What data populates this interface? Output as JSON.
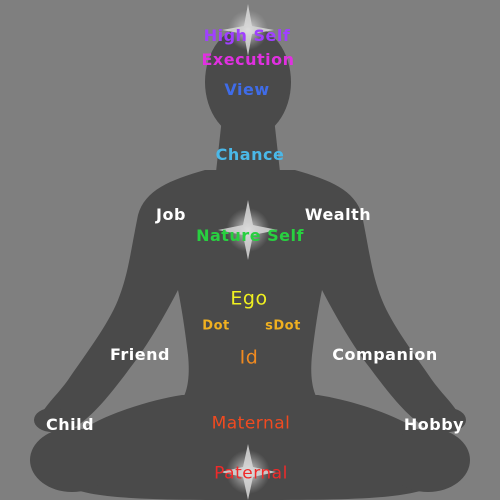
{
  "labels": {
    "high_self": "High Self",
    "execution": "Execution",
    "view": "View",
    "chance": "Chance",
    "job": "Job",
    "wealth": "Wealth",
    "nature_self": "Nature Self",
    "ego": "Ego",
    "dot": "Dot",
    "sdot": "sDot",
    "friend": "Friend",
    "id": "Id",
    "companion": "Companion",
    "child": "Child",
    "hobby": "Hobby",
    "maternal": "Maternal",
    "paternal": "Paternal"
  },
  "colors": {
    "background": "#7f7f7f",
    "silhouette": "#4a4a4a",
    "high_self": "#a040ff",
    "execution": "#e030e0",
    "view": "#3f6ce8",
    "chance": "#4ab8e8",
    "nature_self": "#28d040",
    "ego": "#f0f020",
    "dot": "#f0b020",
    "id": "#f08a20",
    "maternal": "#f04a20",
    "paternal": "#f02a2a",
    "white": "#ffffff"
  },
  "icons": [
    "star-glow-icon"
  ]
}
